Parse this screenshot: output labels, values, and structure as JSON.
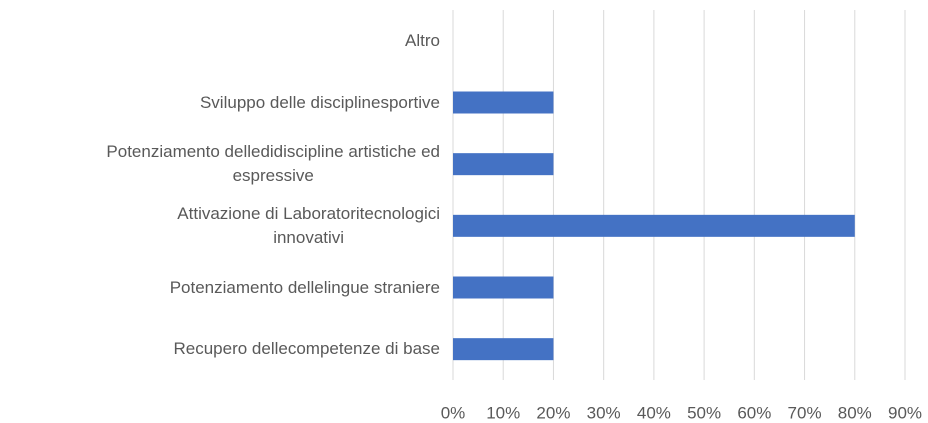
{
  "chart_data": {
    "type": "hbar",
    "categories": [
      "Altro",
      "Sviluppo delle disciplinesportive",
      "Potenziamento delledidiscipline artistiche ed\nespressive",
      "Attivazione di Laboratoritecnologici\ninnovativi",
      "Potenziamento dellelingue straniere",
      "Recupero dellecompetenze di base"
    ],
    "values": [
      0,
      20,
      20,
      80,
      20,
      20
    ],
    "color": "#4472c4",
    "xlim": [
      0,
      90
    ],
    "xticks": [
      {
        "value": 0,
        "label": "0%"
      },
      {
        "value": 10,
        "label": "10%"
      },
      {
        "value": 20,
        "label": "20%"
      },
      {
        "value": 30,
        "label": "30%"
      },
      {
        "value": 40,
        "label": "40%"
      },
      {
        "value": 50,
        "label": "50%"
      },
      {
        "value": 60,
        "label": "60%"
      },
      {
        "value": 70,
        "label": "70%"
      },
      {
        "value": 80,
        "label": "80%"
      },
      {
        "value": 90,
        "label": "90%"
      }
    ],
    "grid": true
  }
}
